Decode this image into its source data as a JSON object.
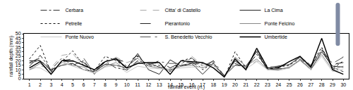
{
  "chart_data": {
    "type": "line",
    "x_label": "rainfall event (n.)",
    "y_label": "rainfall depth (mm)",
    "x": [
      1,
      2,
      3,
      4,
      5,
      6,
      7,
      8,
      9,
      10,
      11,
      12,
      13,
      14,
      15,
      16,
      17,
      18,
      19,
      20,
      21,
      22,
      23,
      24,
      25,
      26,
      27,
      28,
      29,
      30
    ],
    "xlim": [
      0.5,
      30.5
    ],
    "xticks": [
      1,
      2,
      3,
      4,
      5,
      6,
      7,
      8,
      9,
      10,
      11,
      12,
      13,
      14,
      15,
      16,
      17,
      18,
      19,
      20,
      21,
      22,
      23,
      24,
      25,
      26,
      27,
      28,
      29,
      30
    ],
    "ylim": [
      0,
      50
    ],
    "yticks": [
      0,
      5,
      10,
      15,
      20,
      25,
      30,
      35,
      40,
      45,
      50
    ],
    "grid": false,
    "legend": "top",
    "series": [
      {
        "name": "Cerbara",
        "color": "#333333",
        "line_style": "dashdot",
        "values": [
          14,
          26,
          10,
          23,
          15,
          20,
          5,
          19,
          12,
          10,
          20,
          17,
          13,
          10,
          15,
          17,
          17,
          15,
          4,
          17,
          12,
          32,
          10,
          13,
          16,
          22,
          14,
          32,
          12,
          8
        ]
      },
      {
        "name": "Citta' di Castello",
        "color": "#aaaaaa",
        "line_style": "dash",
        "values": [
          10,
          14,
          12,
          26,
          28,
          14,
          10,
          16,
          24,
          18,
          22,
          16,
          17,
          7,
          16,
          25,
          15,
          18,
          2,
          23,
          12,
          20,
          12,
          10,
          15,
          22,
          11,
          34,
          12,
          25
        ]
      },
      {
        "name": "La Cima",
        "color": "#222222",
        "line_style": "solid",
        "values": [
          20,
          20,
          10,
          15,
          17,
          10,
          8,
          16,
          15,
          12,
          28,
          10,
          5,
          21,
          14,
          17,
          5,
          17,
          3,
          15,
          14,
          30,
          10,
          11,
          12,
          21,
          10,
          30,
          14,
          13
        ]
      },
      {
        "name": "Petrelle",
        "color": "#111111",
        "line_style": "dot",
        "values": [
          22,
          37,
          7,
          19,
          31,
          15,
          9,
          25,
          20,
          12,
          25,
          14,
          15,
          8,
          20,
          23,
          10,
          18,
          1,
          30,
          12,
          27,
          11,
          13,
          15,
          24,
          15,
          35,
          11,
          20
        ]
      },
      {
        "name": "Pierantonio",
        "color": "#222222",
        "line_style": "longdash",
        "values": [
          18,
          23,
          8,
          20,
          22,
          18,
          7,
          21,
          22,
          18,
          26,
          15,
          20,
          12,
          18,
          18,
          12,
          20,
          3,
          20,
          11,
          28,
          11,
          14,
          17,
          24,
          13,
          33,
          16,
          18
        ]
      },
      {
        "name": "Ponte Felcino",
        "color": "#888888",
        "line_style": "solid",
        "values": [
          10,
          17,
          6,
          18,
          15,
          13,
          6,
          14,
          18,
          9,
          19,
          14,
          12,
          9,
          14,
          15,
          12,
          17,
          2,
          24,
          14,
          22,
          10,
          10,
          13,
          21,
          12,
          27,
          10,
          14
        ]
      },
      {
        "name": "Ponte Nuovo",
        "color": "#c8c8c8",
        "line_style": "solid",
        "values": [
          13,
          12,
          5,
          18,
          14,
          10,
          6,
          13,
          15,
          7,
          14,
          12,
          11,
          11,
          12,
          13,
          13,
          15,
          1,
          19,
          11,
          19,
          10,
          9,
          12,
          20,
          10,
          25,
          8,
          11
        ]
      },
      {
        "name": "S. Benedetto Vecchio",
        "color": "#555555",
        "line_style": "longdashdot",
        "values": [
          17,
          21,
          9,
          19,
          19,
          23,
          6,
          20,
          23,
          14,
          23,
          16,
          19,
          17,
          17,
          23,
          14,
          20,
          3,
          20,
          11,
          33,
          13,
          14,
          16,
          24,
          15,
          32,
          17,
          24
        ]
      },
      {
        "name": "Umbertide",
        "color": "#000000",
        "line_style": "solid",
        "values": [
          12,
          19,
          5,
          20,
          20,
          15,
          10,
          19,
          22,
          12,
          17,
          18,
          18,
          5,
          20,
          19,
          18,
          12,
          2,
          22,
          10,
          34,
          12,
          12,
          19,
          25,
          13,
          45,
          10,
          5
        ]
      }
    ]
  }
}
